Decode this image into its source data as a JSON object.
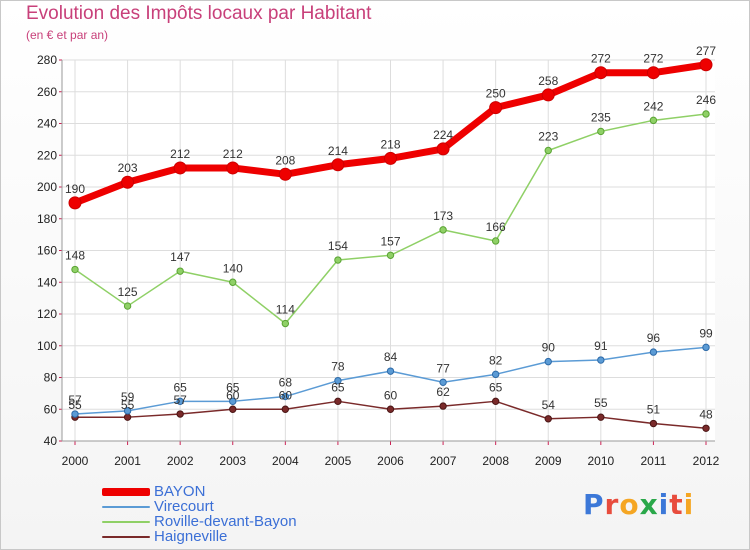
{
  "header": {
    "title": "Evolution des Impôts locaux par Habitant",
    "subtitle": "(en € et par an)"
  },
  "logo": {
    "text": "Proxiti",
    "colors": [
      "#3c78d8",
      "#e84c3d",
      "#f5a623",
      "#2aa84a",
      "#3c78d8",
      "#e84c3d",
      "#f5a623"
    ]
  },
  "colors": {
    "title": "#c8407a",
    "axis_text": "#222222",
    "grid": "#dddddd",
    "axis_tick": "#cc2255"
  },
  "chart_data": {
    "type": "line",
    "title": "Evolution des Impôts locaux par Habitant",
    "subtitle": "(en € et par an)",
    "xlabel": "",
    "ylabel": "",
    "x": [
      "2000",
      "2001",
      "2002",
      "2003",
      "2004",
      "2005",
      "2006",
      "2007",
      "2008",
      "2009",
      "2010",
      "2011",
      "2012"
    ],
    "ylim": [
      40,
      280
    ],
    "yticks": [
      40,
      60,
      80,
      100,
      120,
      140,
      160,
      180,
      200,
      220,
      240,
      260,
      280
    ],
    "grid": true,
    "legend_position": "bottom-left",
    "series": [
      {
        "name": "BAYON",
        "color": "#ee0000",
        "values": [
          190,
          203,
          212,
          212,
          208,
          214,
          218,
          224,
          250,
          258,
          272,
          272,
          277
        ],
        "labels": [
          "190",
          "203",
          "212",
          "212",
          "208",
          "214",
          "218",
          "224",
          "250",
          "258",
          "272",
          "272",
          "277"
        ]
      },
      {
        "name": "Virecourt",
        "color": "#5b9bd5",
        "values": [
          57,
          59,
          65,
          65,
          68,
          78,
          84,
          77,
          82,
          90,
          91,
          96,
          99
        ],
        "labels": [
          "57",
          "59",
          "65",
          "65",
          "68",
          "78",
          "84",
          "77",
          "82",
          "90",
          "91",
          "96",
          "99"
        ]
      },
      {
        "name": "Roville-devant-Bayon",
        "color": "#8fd066",
        "values": [
          148,
          125,
          147,
          140,
          114,
          154,
          157,
          173,
          166,
          223,
          235,
          242,
          246
        ],
        "labels": [
          "148",
          "125",
          "147",
          "140",
          "114",
          "154",
          "157",
          "173",
          "166",
          "223",
          "235",
          "242",
          "246"
        ]
      },
      {
        "name": "Haigneville",
        "color": "#7a2a2a",
        "values": [
          55,
          55,
          57,
          60,
          60,
          65,
          60,
          62,
          65,
          54,
          55,
          51,
          48
        ],
        "labels": [
          "55",
          "55",
          "57",
          "60",
          "60",
          "65",
          "60",
          "62",
          "65",
          "54",
          "55",
          "51",
          "48"
        ]
      }
    ]
  }
}
